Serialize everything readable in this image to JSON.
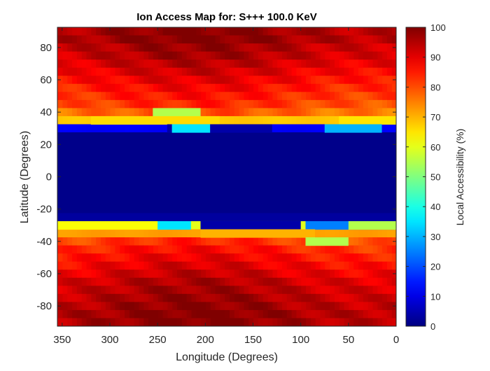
{
  "chart_data": {
    "type": "heatmap",
    "title": "Ion Access Map for: S+++ 100.0 KeV",
    "xlabel": "Longitude (Degrees)",
    "ylabel": "Latitude (Degrees)",
    "colorbar_label": "Local Accessibility (%)",
    "x_reversed": true,
    "xlim": [
      0,
      355
    ],
    "ylim": [
      -92.5,
      92.5
    ],
    "x_ticks": [
      350,
      300,
      250,
      200,
      150,
      100,
      50,
      0
    ],
    "y_ticks": [
      80,
      60,
      40,
      20,
      0,
      -20,
      -40,
      -60,
      -80
    ],
    "clim": [
      0,
      100
    ],
    "colorbar_ticks": [
      100,
      90,
      80,
      70,
      60,
      50,
      40,
      30,
      20,
      10,
      0
    ],
    "colormap": "jet",
    "grid": false,
    "cell_width_deg": 5,
    "cell_height_deg": 5,
    "latitude_bands": [
      {
        "lat": 90,
        "value": 97
      },
      {
        "lat": 85,
        "value": 97
      },
      {
        "lat": 80,
        "value": 95
      },
      {
        "lat": 75,
        "value": 94
      },
      {
        "lat": 70,
        "value": 92
      },
      {
        "lat": 65,
        "value": 90
      },
      {
        "lat": 60,
        "value": 88
      },
      {
        "lat": 55,
        "value": 86
      },
      {
        "lat": 50,
        "value": 84
      },
      {
        "lat": 45,
        "value": 82
      },
      {
        "lat": 40,
        "value": 78
      },
      {
        "lat": 35,
        "value": 68
      },
      {
        "lat": 30,
        "value": 12
      },
      {
        "lat": 25,
        "value": 1
      },
      {
        "lat": 20,
        "value": 1
      },
      {
        "lat": 15,
        "value": 1
      },
      {
        "lat": 10,
        "value": 1
      },
      {
        "lat": 5,
        "value": 1
      },
      {
        "lat": 0,
        "value": 1
      },
      {
        "lat": -5,
        "value": 1
      },
      {
        "lat": -10,
        "value": 1
      },
      {
        "lat": -15,
        "value": 1
      },
      {
        "lat": -20,
        "value": 1
      },
      {
        "lat": -25,
        "value": 3
      },
      {
        "lat": -30,
        "value": 60
      },
      {
        "lat": -35,
        "value": 72
      },
      {
        "lat": -40,
        "value": 82
      },
      {
        "lat": -45,
        "value": 85
      },
      {
        "lat": -50,
        "value": 87
      },
      {
        "lat": -55,
        "value": 89
      },
      {
        "lat": -60,
        "value": 91
      },
      {
        "lat": -65,
        "value": 93
      },
      {
        "lat": -70,
        "value": 94
      },
      {
        "lat": -75,
        "value": 95
      },
      {
        "lat": -80,
        "value": 96
      },
      {
        "lat": -85,
        "value": 97
      },
      {
        "lat": -90,
        "value": 97
      }
    ],
    "features": [
      {
        "lon_min": 205,
        "lon_max": 255,
        "lat_min": 37.5,
        "lat_max": 42.5,
        "value": 55
      },
      {
        "lon_min": 185,
        "lon_max": 320,
        "lat_min": 32.5,
        "lat_max": 37.5,
        "value": 66
      },
      {
        "lon_min": 0,
        "lon_max": 60,
        "lat_min": 32.5,
        "lat_max": 37.5,
        "value": 65
      },
      {
        "lon_min": 130,
        "lon_max": 240,
        "lat_min": 27.5,
        "lat_max": 32.5,
        "value": 4
      },
      {
        "lon_min": 195,
        "lon_max": 235,
        "lat_min": 27.5,
        "lat_max": 32.5,
        "value": 35
      },
      {
        "lon_min": 15,
        "lon_max": 75,
        "lat_min": 27.5,
        "lat_max": 32.5,
        "value": 30
      },
      {
        "lon_min": 240,
        "lon_max": 355,
        "lat_min": -32.5,
        "lat_max": -27.5,
        "value": 62
      },
      {
        "lon_min": 215,
        "lon_max": 250,
        "lat_min": -32.5,
        "lat_max": -27.5,
        "value": 35
      },
      {
        "lon_min": 100,
        "lon_max": 205,
        "lat_min": -32.5,
        "lat_max": -27.5,
        "value": 4
      },
      {
        "lon_min": 0,
        "lon_max": 95,
        "lat_min": -32.5,
        "lat_max": -27.5,
        "value": 25
      },
      {
        "lon_min": 0,
        "lon_max": 50,
        "lat_min": -32.5,
        "lat_max": -27.5,
        "value": 55
      },
      {
        "lon_min": 85,
        "lon_max": 205,
        "lat_min": -37.5,
        "lat_max": -32.5,
        "value": 70
      },
      {
        "lon_min": 50,
        "lon_max": 95,
        "lat_min": -42.5,
        "lat_max": -37.5,
        "value": 55
      }
    ]
  }
}
